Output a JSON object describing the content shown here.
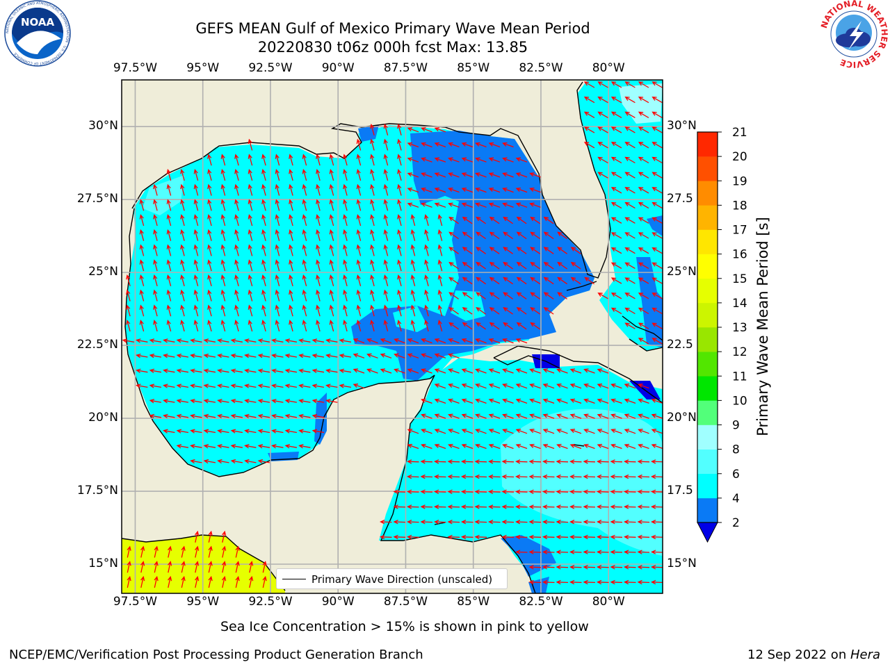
{
  "title": {
    "line1": "GEFS MEAN Gulf of Mexico Primary Wave Mean Period",
    "line2": "20220830 t06z 000h fcst   Max: 13.85"
  },
  "logos": {
    "left": {
      "name": "NOAA",
      "ring_text": "NATIONAL OCEANIC AND ATMOSPHERIC ADMINISTRATION · U.S. DEPARTMENT OF COMMERCE"
    },
    "right": {
      "ring_text": "NATIONAL WEATHER SERVICE"
    }
  },
  "map": {
    "lon_ticks": [
      "97.5°W",
      "95°W",
      "92.5°W",
      "90°W",
      "87.5°W",
      "85°W",
      "82.5°W",
      "80°W"
    ],
    "lon_values": [
      -97.5,
      -95,
      -92.5,
      -90,
      -87.5,
      -85,
      -82.5,
      -80
    ],
    "lat_ticks_left": [
      "30°N",
      "27.5°N",
      "25°N",
      "22.5°N",
      "20°N",
      "17.5°N",
      "15°N"
    ],
    "lat_ticks_right": [
      "30°N",
      "27.5",
      "25°N",
      "22.5",
      "20°N",
      "17.5",
      "15°N"
    ],
    "lat_values": [
      30,
      27.5,
      25,
      22.5,
      20,
      17.5,
      15
    ],
    "extent": {
      "lon_min": -98,
      "lon_max": -78,
      "lat_min": 14,
      "lat_max": 31.6
    },
    "legend_label": "Primary Wave Direction (unscaled)"
  },
  "colorbar": {
    "label": "Primary Wave Mean Period [s]",
    "ticks": [
      "2",
      "4",
      "6",
      "8",
      "9",
      "10",
      "11",
      "12",
      "13",
      "14",
      "15",
      "16",
      "17",
      "18",
      "19",
      "20",
      "21"
    ],
    "colors": [
      "#0a7af5",
      "#00ffff",
      "#52ffff",
      "#a0ffff",
      "#52ff7a",
      "#00e600",
      "#52e600",
      "#99e600",
      "#ccf500",
      "#e6ff00",
      "#ffff00",
      "#ffe600",
      "#ffb400",
      "#ff8c00",
      "#ff5000",
      "#ff2800"
    ],
    "under_color": "#0000e6"
  },
  "footer": {
    "note": "Sea Ice Concentration > 15% is shown in pink to yellow",
    "credit_left": "NCEP/EMC/Verification Post Processing Product Generation Branch",
    "credit_right_date": "12 Sep 2022 on ",
    "credit_right_host": "Hera"
  }
}
